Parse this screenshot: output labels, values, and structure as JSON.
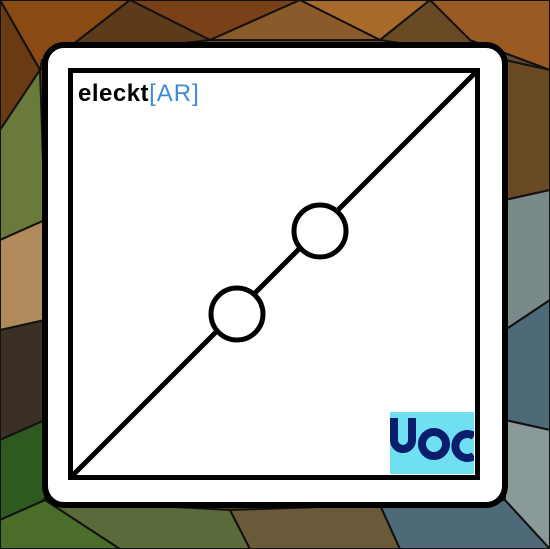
{
  "brand": {
    "primary": "eleckt",
    "accent": "[AR]",
    "accent_color": "#3c8ad8"
  },
  "partner_logo": {
    "text": "UOC",
    "background_color": "#6fe0f2",
    "ink_color": "#0b1e6e"
  },
  "diagram": {
    "icon": "diagonal-line-with-two-circles-icon",
    "node_count": 2
  },
  "background": {
    "style": "low-poly mosaic",
    "palette": [
      "#8a4a14",
      "#a86a2a",
      "#5d3a1a",
      "#6a7a3a",
      "#4a6e2a",
      "#2e5a20",
      "#7a8a8a",
      "#4e6a78",
      "#b08a5a",
      "#3a3026"
    ]
  }
}
